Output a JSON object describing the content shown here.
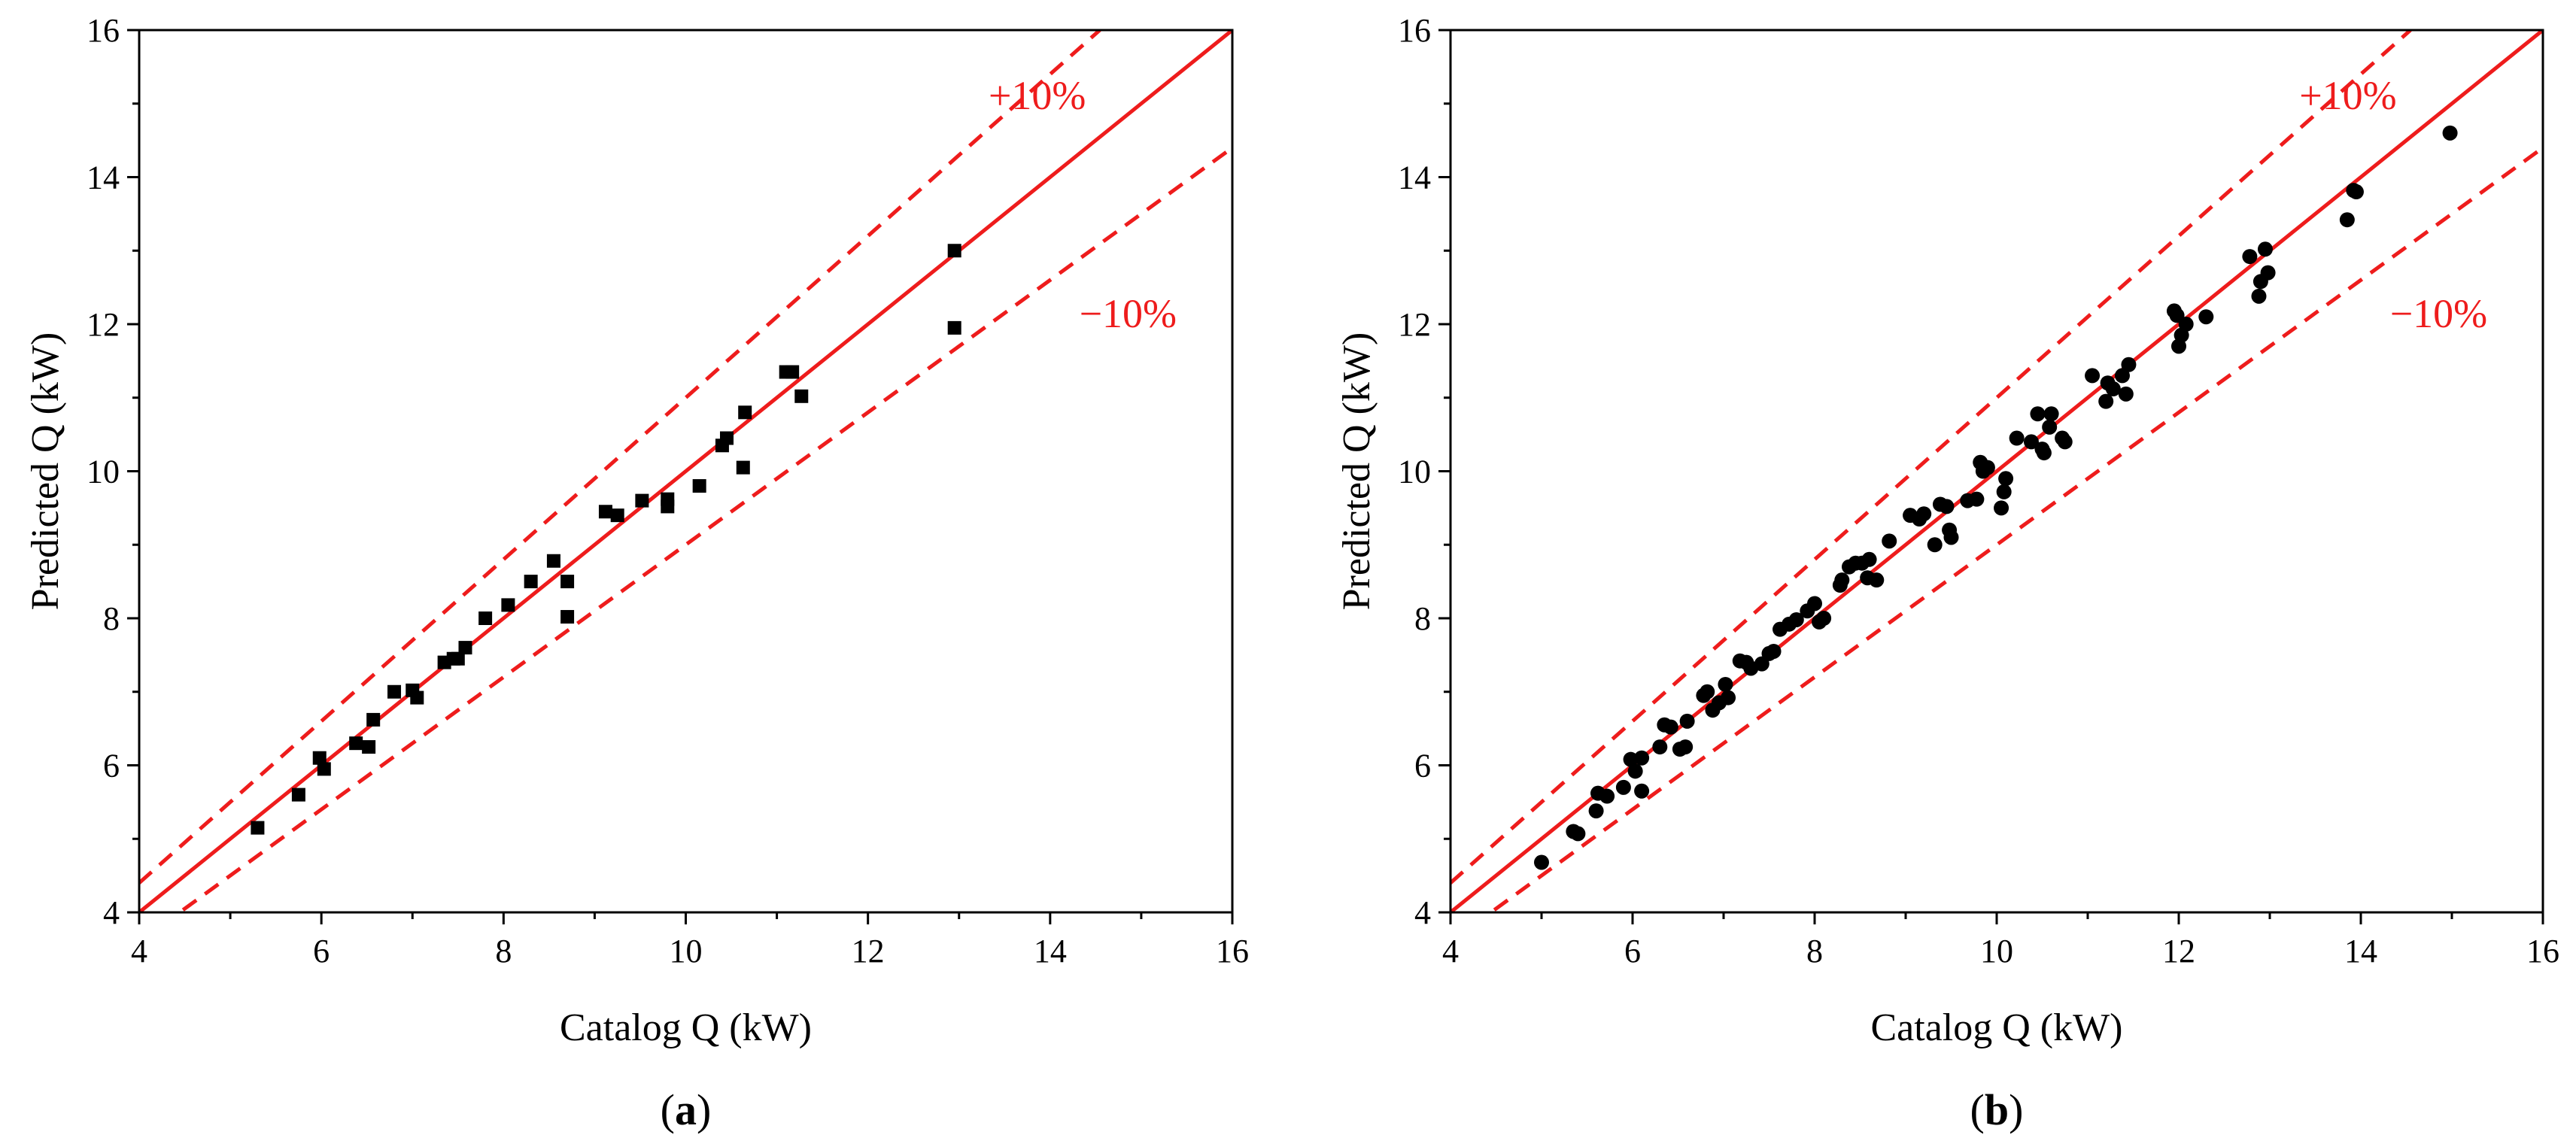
{
  "colors": {
    "reference": "#ee1c1c",
    "points": "#000000",
    "axis": "#000000"
  },
  "chart_data": [
    {
      "type": "scatter",
      "panel_label": {
        "open": "(",
        "letter": "a",
        "close": ")"
      },
      "marker": "square",
      "xlabel": "Catalog Q (kW)",
      "ylabel": "Predicted Q (kW)",
      "xlim": [
        4,
        16
      ],
      "ylim": [
        4,
        16
      ],
      "xticks": [
        "4",
        "6",
        "8",
        "10",
        "12",
        "14",
        "16"
      ],
      "yticks": [
        "4",
        "6",
        "8",
        "10",
        "12",
        "14",
        "16"
      ],
      "reference_lines": [
        {
          "name": "y = x",
          "slope": 1.0,
          "style": "solid"
        },
        {
          "name": "+10%",
          "slope": 1.1,
          "style": "dashed"
        },
        {
          "name": "−10%",
          "slope": 0.9,
          "style": "dashed"
        }
      ],
      "band_labels": {
        "upper": "+10%",
        "lower": "−10%"
      },
      "points": [
        [
          5.3,
          5.15
        ],
        [
          5.75,
          5.6
        ],
        [
          5.98,
          6.1
        ],
        [
          6.03,
          5.95
        ],
        [
          6.38,
          6.3
        ],
        [
          6.52,
          6.25
        ],
        [
          6.57,
          6.62
        ],
        [
          6.8,
          7.0
        ],
        [
          7.0,
          7.02
        ],
        [
          7.05,
          6.92
        ],
        [
          7.35,
          7.4
        ],
        [
          7.45,
          7.45
        ],
        [
          7.5,
          7.45
        ],
        [
          7.58,
          7.6
        ],
        [
          7.8,
          8.0
        ],
        [
          8.05,
          8.18
        ],
        [
          8.3,
          8.5
        ],
        [
          8.55,
          8.78
        ],
        [
          8.7,
          8.5
        ],
        [
          8.7,
          8.02
        ],
        [
          9.12,
          9.45
        ],
        [
          9.25,
          9.4
        ],
        [
          9.52,
          9.6
        ],
        [
          9.8,
          9.62
        ],
        [
          9.8,
          9.52
        ],
        [
          10.15,
          9.8
        ],
        [
          10.4,
          10.35
        ],
        [
          10.45,
          10.45
        ],
        [
          10.63,
          10.05
        ],
        [
          10.65,
          10.8
        ],
        [
          11.1,
          11.35
        ],
        [
          11.17,
          11.35
        ],
        [
          11.27,
          11.02
        ],
        [
          12.95,
          13.0
        ],
        [
          12.95,
          11.95
        ]
      ]
    },
    {
      "type": "scatter",
      "panel_label": {
        "open": "(",
        "letter": "b",
        "close": ")"
      },
      "marker": "circle",
      "xlabel": "Catalog Q (kW)",
      "ylabel": "Predicted Q (kW)",
      "xlim": [
        4,
        16
      ],
      "ylim": [
        4,
        16
      ],
      "xticks": [
        "4",
        "6",
        "8",
        "10",
        "12",
        "14",
        "16"
      ],
      "yticks": [
        "4",
        "6",
        "8",
        "10",
        "12",
        "14",
        "16"
      ],
      "reference_lines": [
        {
          "name": "y = x",
          "slope": 1.0,
          "style": "solid"
        },
        {
          "name": "+10%",
          "slope": 1.1,
          "style": "dashed"
        },
        {
          "name": "−10%",
          "slope": 0.9,
          "style": "dashed"
        }
      ],
      "band_labels": {
        "upper": "+10%",
        "lower": "−10%"
      },
      "points": [
        [
          5.0,
          4.68
        ],
        [
          5.35,
          5.1
        ],
        [
          5.4,
          5.07
        ],
        [
          5.6,
          5.38
        ],
        [
          5.62,
          5.62
        ],
        [
          5.72,
          5.58
        ],
        [
          5.9,
          5.7
        ],
        [
          5.98,
          6.08
        ],
        [
          6.03,
          5.92
        ],
        [
          6.1,
          5.65
        ],
        [
          6.1,
          6.1
        ],
        [
          6.3,
          6.25
        ],
        [
          6.35,
          6.55
        ],
        [
          6.42,
          6.52
        ],
        [
          6.52,
          6.22
        ],
        [
          6.58,
          6.25
        ],
        [
          6.6,
          6.6
        ],
        [
          6.78,
          6.95
        ],
        [
          6.82,
          7.0
        ],
        [
          6.88,
          6.75
        ],
        [
          6.95,
          6.85
        ],
        [
          7.02,
          7.1
        ],
        [
          7.05,
          6.92
        ],
        [
          7.18,
          7.42
        ],
        [
          7.25,
          7.4
        ],
        [
          7.3,
          7.32
        ],
        [
          7.42,
          7.38
        ],
        [
          7.5,
          7.52
        ],
        [
          7.55,
          7.55
        ],
        [
          7.62,
          7.85
        ],
        [
          7.72,
          7.92
        ],
        [
          7.8,
          7.98
        ],
        [
          7.92,
          8.1
        ],
        [
          8.0,
          8.2
        ],
        [
          8.05,
          7.95
        ],
        [
          8.1,
          8.0
        ],
        [
          8.28,
          8.45
        ],
        [
          8.3,
          8.52
        ],
        [
          8.38,
          8.7
        ],
        [
          8.45,
          8.75
        ],
        [
          8.52,
          8.75
        ],
        [
          8.58,
          8.55
        ],
        [
          8.6,
          8.8
        ],
        [
          8.68,
          8.52
        ],
        [
          8.82,
          9.05
        ],
        [
          9.05,
          9.4
        ],
        [
          9.15,
          9.35
        ],
        [
          9.2,
          9.42
        ],
        [
          9.32,
          9.0
        ],
        [
          9.38,
          9.55
        ],
        [
          9.45,
          9.52
        ],
        [
          9.48,
          9.2
        ],
        [
          9.5,
          9.1
        ],
        [
          9.68,
          9.6
        ],
        [
          9.78,
          9.62
        ],
        [
          9.82,
          10.12
        ],
        [
          9.85,
          10.0
        ],
        [
          9.9,
          10.05
        ],
        [
          10.05,
          9.5
        ],
        [
          10.08,
          9.72
        ],
        [
          10.1,
          9.9
        ],
        [
          10.22,
          10.45
        ],
        [
          10.38,
          10.4
        ],
        [
          10.45,
          10.78
        ],
        [
          10.5,
          10.3
        ],
        [
          10.52,
          10.25
        ],
        [
          10.58,
          10.6
        ],
        [
          10.6,
          10.78
        ],
        [
          10.72,
          10.45
        ],
        [
          10.75,
          10.4
        ],
        [
          11.05,
          11.3
        ],
        [
          11.2,
          10.95
        ],
        [
          11.22,
          11.2
        ],
        [
          11.28,
          11.12
        ],
        [
          11.38,
          11.3
        ],
        [
          11.42,
          11.05
        ],
        [
          11.45,
          11.45
        ],
        [
          11.95,
          12.18
        ],
        [
          11.98,
          12.12
        ],
        [
          12.0,
          11.7
        ],
        [
          12.03,
          11.85
        ],
        [
          12.08,
          12.0
        ],
        [
          12.3,
          12.1
        ],
        [
          12.78,
          12.92
        ],
        [
          12.88,
          12.38
        ],
        [
          12.9,
          12.58
        ],
        [
          12.95,
          13.02
        ],
        [
          12.98,
          12.7
        ],
        [
          13.85,
          13.42
        ],
        [
          13.92,
          13.82
        ],
        [
          13.95,
          13.8
        ],
        [
          14.98,
          14.6
        ]
      ]
    }
  ]
}
